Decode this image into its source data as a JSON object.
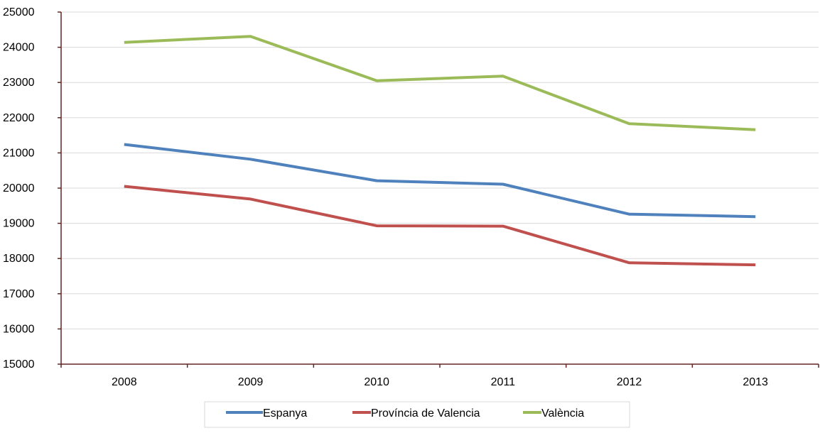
{
  "chart_data": {
    "type": "line",
    "categories": [
      "2008",
      "2009",
      "2010",
      "2011",
      "2012",
      "2013"
    ],
    "series": [
      {
        "name": "Espanya",
        "color": "#4F81BD",
        "values": [
          21240,
          20820,
          20210,
          20110,
          19260,
          19190
        ]
      },
      {
        "name": "Província de Valencia",
        "color": "#C0504D",
        "values": [
          20050,
          19690,
          18930,
          18920,
          17880,
          17820
        ]
      },
      {
        "name": "València",
        "color": "#9BBB59",
        "values": [
          24140,
          24310,
          23050,
          23180,
          21830,
          21660
        ]
      }
    ],
    "yticks": [
      "15000",
      "16000",
      "17000",
      "18000",
      "19000",
      "20000",
      "21000",
      "22000",
      "23000",
      "24000",
      "25000"
    ],
    "ylim": [
      15000,
      25000
    ],
    "grid": true,
    "legend_position": "bottom",
    "axis_color": "#632523",
    "grid_color": "#D9D9D9"
  }
}
